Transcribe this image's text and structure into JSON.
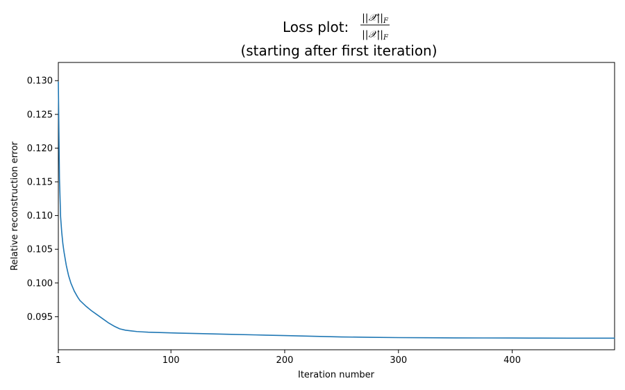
{
  "chart_data": {
    "type": "line",
    "title_prefix": "Loss plot: ",
    "title_numerator": "||𝒳̂||",
    "title_denominator": "||𝒳||",
    "title_subscript": "F",
    "subtitle": "(starting after first iteration)",
    "xlabel": "Iteration number",
    "ylabel": "Relative reconstruction error",
    "xlim": [
      1,
      490
    ],
    "ylim": [
      0.0901,
      0.1327
    ],
    "xticks": [
      1,
      100,
      200,
      300,
      400
    ],
    "xtick_labels": [
      "1",
      "100",
      "200",
      "300",
      "400"
    ],
    "yticks": [
      0.095,
      0.1,
      0.105,
      0.11,
      0.115,
      0.12,
      0.125,
      0.13
    ],
    "ytick_labels": [
      "0.095",
      "0.100",
      "0.105",
      "0.110",
      "0.115",
      "0.120",
      "0.125",
      "0.130"
    ],
    "grid": false,
    "series": [
      {
        "color": "#1f77b4",
        "x": [
          1,
          2,
          3,
          4,
          5,
          6,
          8,
          10,
          12,
          15,
          18,
          20,
          25,
          30,
          35,
          40,
          45,
          50,
          55,
          60,
          65,
          70,
          75,
          80,
          90,
          100,
          125,
          150,
          175,
          200,
          225,
          250,
          275,
          300,
          325,
          350,
          375,
          400,
          425,
          450,
          475,
          490
        ],
        "y": [
          0.1298,
          0.1155,
          0.1098,
          0.1075,
          0.1058,
          0.1046,
          0.1026,
          0.1011,
          0.1,
          0.0988,
          0.0979,
          0.0974,
          0.0966,
          0.0959,
          0.0953,
          0.0947,
          0.0941,
          0.0936,
          0.0932,
          0.093,
          0.0929,
          0.0928,
          0.09275,
          0.0927,
          0.09265,
          0.0926,
          0.0925,
          0.0924,
          0.0923,
          0.0922,
          0.0921,
          0.092,
          0.09195,
          0.0919,
          0.09188,
          0.09186,
          0.09185,
          0.09184,
          0.09183,
          0.09182,
          0.09182,
          0.09182
        ]
      }
    ]
  }
}
